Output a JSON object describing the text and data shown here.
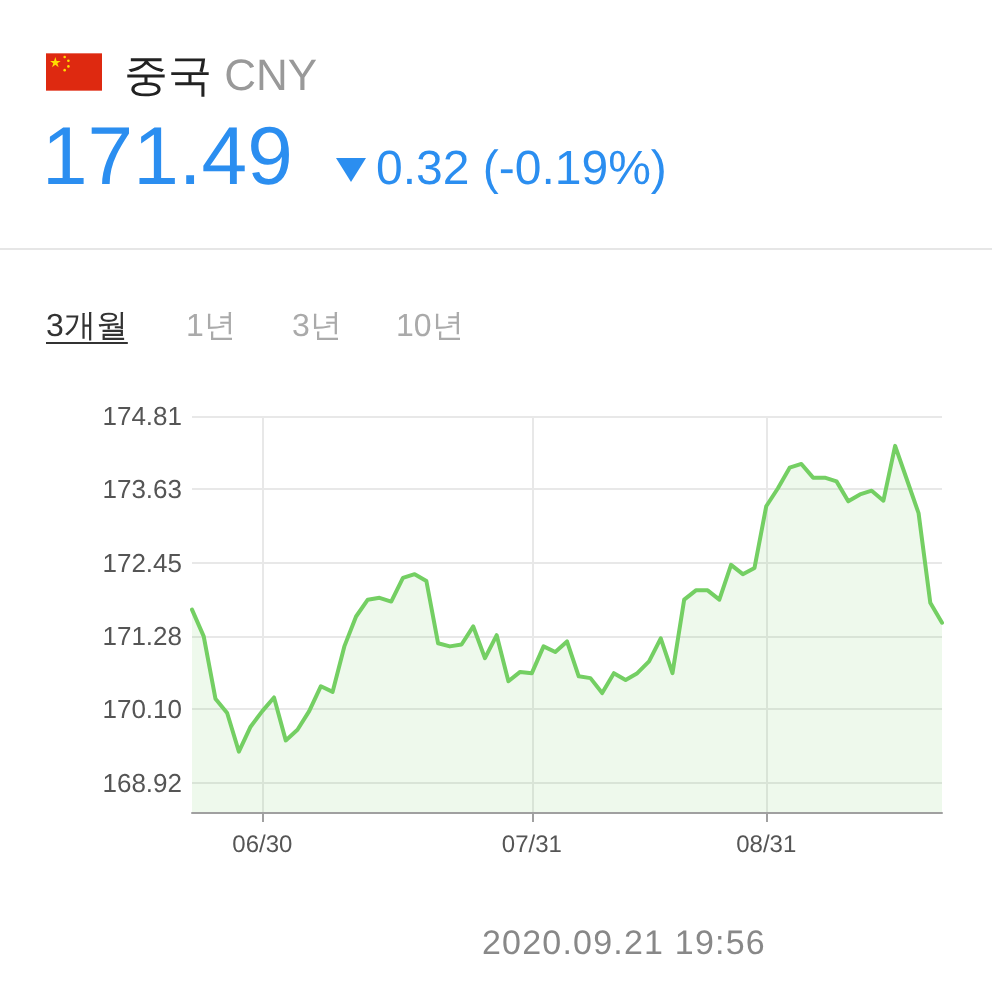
{
  "chart_data": {
    "type": "area",
    "title": "중국 CNY",
    "subtitle": "171.49",
    "annotations": [
      "0.32 (-0.19%)",
      "3개월",
      "1년",
      "3년",
      "10년",
      "2020.09.21 19:56"
    ],
    "categories": [
      null,
      null,
      null,
      null,
      null,
      null,
      "06/30",
      null,
      null,
      null,
      null,
      null,
      null,
      null,
      null,
      null,
      null,
      null,
      null,
      null,
      null,
      null,
      null,
      null,
      null,
      null,
      null,
      null,
      null,
      "07/31",
      null,
      null,
      null,
      null,
      null,
      null,
      null,
      null,
      null,
      null,
      null,
      null,
      null,
      null,
      null,
      null,
      null,
      null,
      null,
      "08/31",
      null,
      null,
      null,
      null,
      null,
      null,
      null,
      null,
      null,
      null,
      null,
      null,
      null,
      null,
      null
    ],
    "values": [
      171.7,
      171.27,
      170.27,
      170.04,
      169.42,
      169.82,
      170.07,
      170.29,
      169.6,
      169.77,
      170.07,
      170.47,
      170.38,
      171.11,
      171.59,
      171.86,
      171.89,
      171.83,
      172.21,
      172.27,
      172.16,
      171.16,
      171.11,
      171.14,
      171.43,
      170.92,
      171.29,
      170.55,
      170.7,
      170.68,
      171.11,
      171.02,
      171.19,
      170.63,
      170.6,
      170.36,
      170.68,
      170.57,
      170.68,
      170.87,
      171.24,
      170.68,
      171.86,
      172.01,
      172.01,
      171.86,
      172.42,
      172.27,
      172.37,
      173.36,
      173.65,
      173.98,
      174.04,
      173.82,
      173.82,
      173.76,
      173.44,
      173.55,
      173.61,
      173.45,
      174.33,
      173.79,
      173.25,
      171.81,
      171.49
    ],
    "color": "#74cf63",
    "ylim": [
      168.45,
      174.81
    ],
    "yticks": [
      168.92,
      {
        "value": 170.1,
        "label": "170.10"
      },
      171.28,
      172.45,
      173.63,
      174.81
    ],
    "grid": true,
    "marker": "none",
    "line_style": "solid"
  }
}
